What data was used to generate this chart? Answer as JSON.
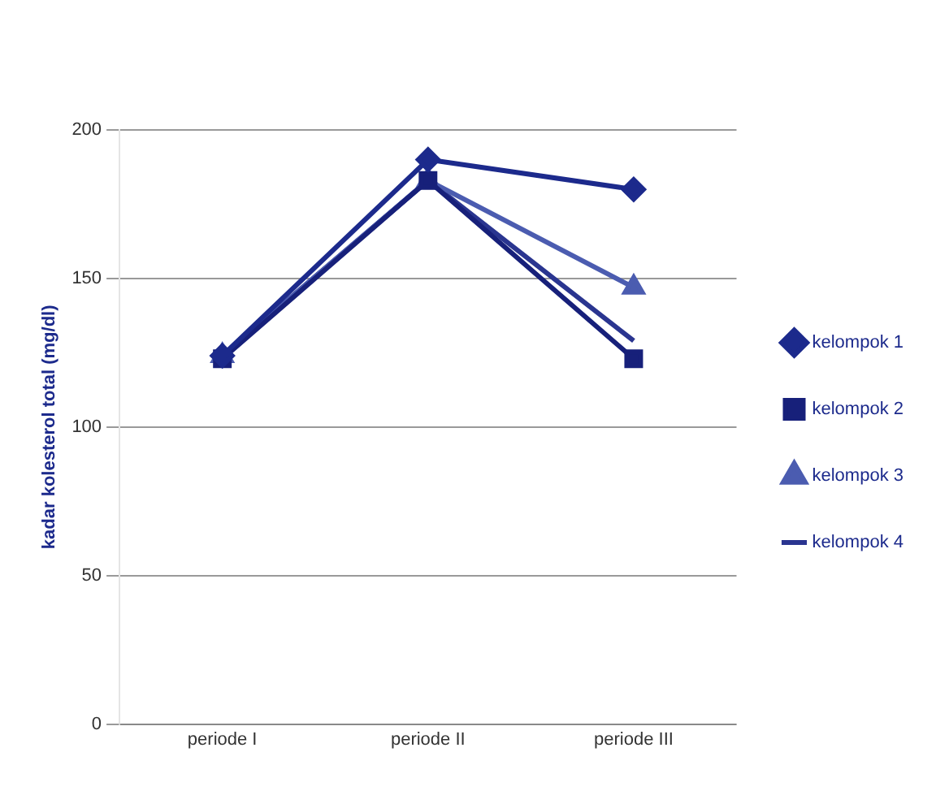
{
  "chart_data": {
    "type": "line",
    "ylabel": "kadar kolesterol total (mg/dl)",
    "categories": [
      "periode I",
      "periode II",
      "periode III"
    ],
    "series": [
      {
        "name": "kelompok 1",
        "color": "#1c2a8c",
        "marker": "diamond",
        "values": [
          124,
          190,
          180
        ]
      },
      {
        "name": "kelompok 2",
        "color": "#17207a",
        "marker": "square",
        "values": [
          123,
          183,
          123
        ]
      },
      {
        "name": "kelompok 3",
        "color": "#4b5cb0",
        "marker": "triangle",
        "values": [
          124,
          183,
          147
        ]
      },
      {
        "name": "kelompok 4",
        "color": "#2a3590",
        "marker": "none",
        "values": [
          124,
          183,
          129
        ]
      }
    ],
    "ylim": [
      0,
      200
    ],
    "yticks": [
      0,
      50,
      100,
      150,
      200
    ],
    "grid": "y",
    "legend": "right"
  }
}
